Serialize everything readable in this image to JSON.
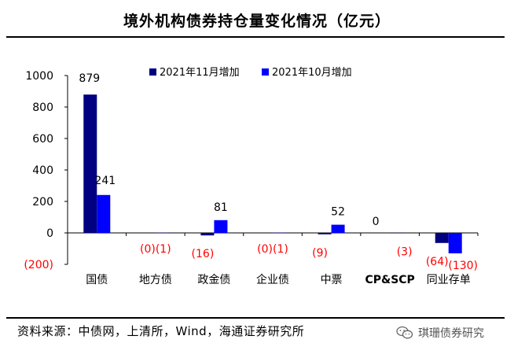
{
  "title": "境外机构债券持仓量变化情况（亿元）",
  "source": "资料来源：中债网，上清所，Wind，海通证券研究所",
  "watermark": "琪珊债券研究",
  "colors": {
    "nov": "#000080",
    "oct": "#0000ff",
    "neg_label": "#ff0000"
  },
  "chart_data": {
    "type": "bar",
    "categories": [
      "国债",
      "地方债",
      "政金债",
      "企业债",
      "中票",
      "CP&SCP",
      "同业存单"
    ],
    "series": [
      {
        "name": "2021年11月增加",
        "values": [
          879,
          0,
          -16,
          0,
          -9,
          0,
          -64
        ]
      },
      {
        "name": "2021年10月增加",
        "values": [
          241,
          1,
          81,
          1,
          52,
          -3,
          -130
        ]
      }
    ],
    "data_labels": [
      {
        "category": "国债",
        "text": "879",
        "series": 0
      },
      {
        "category": "国债",
        "text": "241",
        "series": 1
      },
      {
        "category": "地方债",
        "text": "(0)(1)",
        "series": "both"
      },
      {
        "category": "政金债",
        "text": "(16)",
        "series": 0
      },
      {
        "category": "政金债",
        "text": "81",
        "series": 1
      },
      {
        "category": "企业债",
        "text": "(0)(1)",
        "series": "both"
      },
      {
        "category": "中票",
        "text": "(9)",
        "series": 0
      },
      {
        "category": "中票",
        "text": "52",
        "series": 1
      },
      {
        "category": "CP&SCP",
        "text": "0",
        "series": 0
      },
      {
        "category": "CP&SCP",
        "text": "(3)",
        "series": 1
      },
      {
        "category": "同业存单",
        "text": "(64)",
        "series": 0
      },
      {
        "category": "同业存单",
        "text": "(130)",
        "series": 1
      }
    ],
    "yticks": [
      "1000",
      "800",
      "600",
      "400",
      "200",
      "0",
      "(200)"
    ],
    "ylim": [
      -200,
      1000
    ],
    "legend_position": "top-right",
    "grid": false
  }
}
